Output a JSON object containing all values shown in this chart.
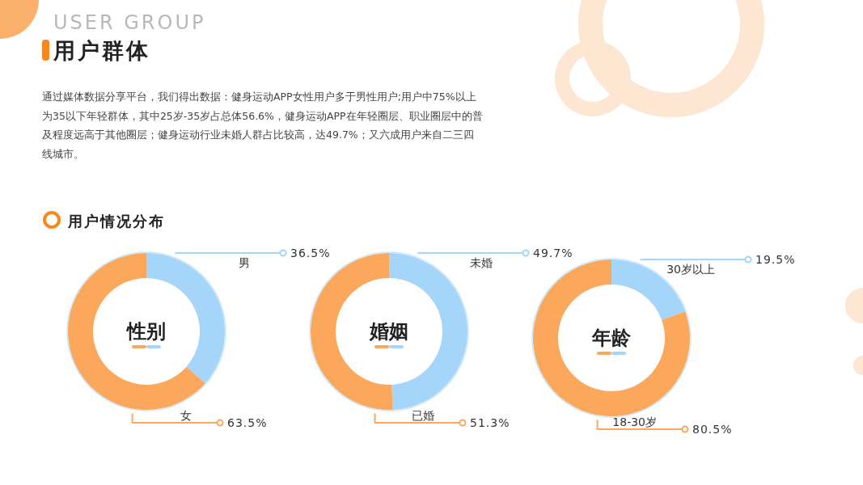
{
  "chart_data": [
    {
      "type": "other",
      "title": "用户群体",
      "subtitle": "USER GROUP",
      "annotations": [
        "通过媒体数据分享平台，我们得出数据：健身运动APP女性用户多于男性用户;用户中75%以上为35以下年轻群体，其中25岁-35岁占总体56.6%，健身运动APP在年轻圈层、职业圈层中的普及程度远高于其他圈层；健身运动行业未婚人群占比较高，达49.7%；又六成用户来自二三四线城市。",
        "用户情况分布"
      ]
    },
    {
      "type": "donut",
      "title": "性别",
      "categories": [
        "男",
        "女"
      ],
      "values": [
        36.5,
        63.5
      ],
      "colors": [
        "#a6d5fa",
        "#fba85c"
      ],
      "value_labels": [
        "36.5%",
        "63.5%"
      ]
    },
    {
      "type": "donut",
      "title": "婚姻",
      "categories": [
        "未婚",
        "已婚"
      ],
      "values": [
        49.7,
        51.3
      ],
      "colors": [
        "#a6d5fa",
        "#fba85c"
      ],
      "value_labels": [
        "49.7%",
        "51.3%"
      ]
    },
    {
      "type": "donut",
      "title": "年龄",
      "categories": [
        "30岁以上",
        "18-30岁"
      ],
      "values": [
        19.5,
        80.5
      ],
      "colors": [
        "#a6d5fa",
        "#fba85c"
      ],
      "value_labels": [
        "19.5%",
        "80.5%"
      ]
    }
  ]
}
